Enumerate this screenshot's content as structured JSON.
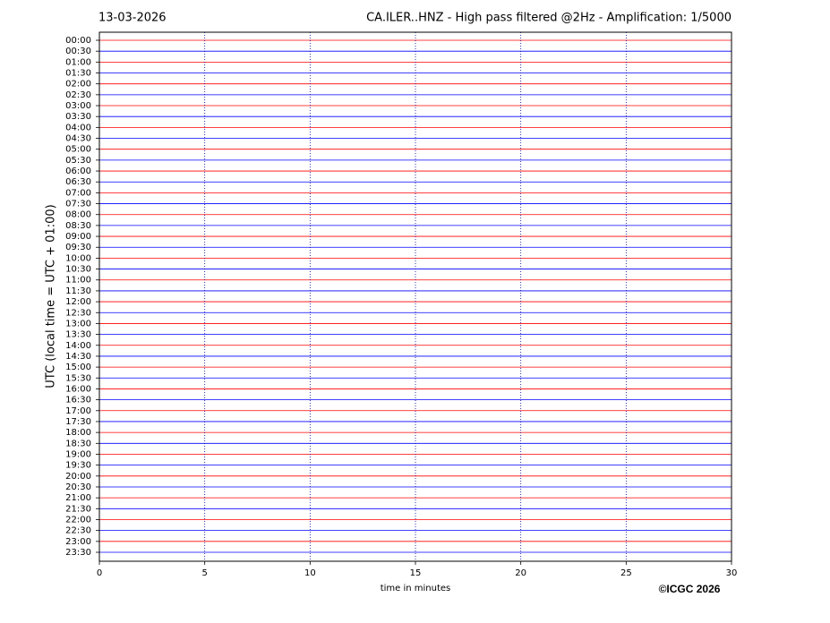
{
  "chart_data": {
    "type": "helicorder",
    "date": "13-03-2026",
    "title": "CA.ILER..HNZ - High pass filtered @2Hz - Amplification: 1/5000",
    "ylabel": "UTC (local time = UTC + 01:00)",
    "xlabel": "time in minutes",
    "credit": "©ICGC 2026",
    "categories": [
      "00:00",
      "00:30",
      "01:00",
      "01:30",
      "02:00",
      "02:30",
      "03:00",
      "03:30",
      "04:00",
      "04:30",
      "05:00",
      "05:30",
      "06:00",
      "06:30",
      "07:00",
      "07:30",
      "08:00",
      "08:30",
      "09:00",
      "09:30",
      "10:00",
      "10:30",
      "11:00",
      "11:30",
      "12:00",
      "12:30",
      "13:00",
      "13:30",
      "14:00",
      "14:30",
      "15:00",
      "15:30",
      "16:00",
      "16:30",
      "17:00",
      "17:30",
      "18:00",
      "18:30",
      "19:00",
      "19:30",
      "20:00",
      "20:30",
      "21:00",
      "21:30",
      "22:00",
      "22:30",
      "23:00",
      "23:30"
    ],
    "xlim": [
      0,
      30
    ],
    "xticks": [
      0,
      5,
      10,
      15,
      20,
      25,
      30
    ],
    "trace_colors": [
      "#ff0000",
      "#0000ff"
    ],
    "grid": true
  }
}
